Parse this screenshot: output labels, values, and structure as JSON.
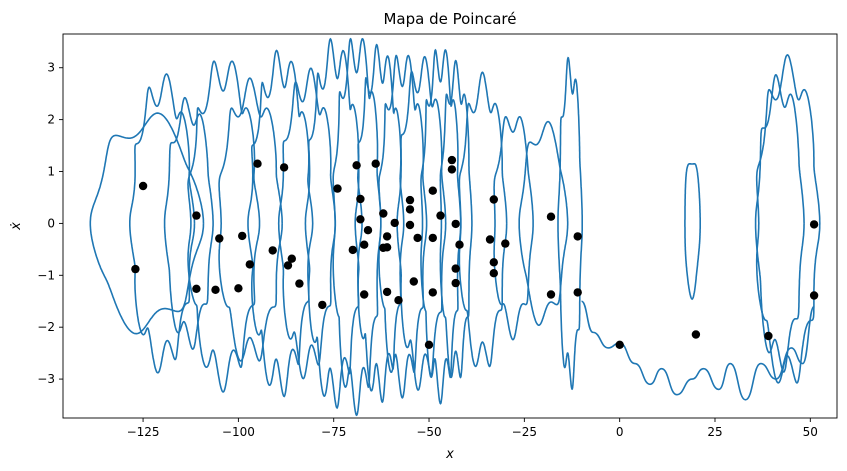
{
  "chart_data": {
    "type": "line",
    "title": "Mapa de Poincaré",
    "xlabel": "x",
    "ylabel": "ẋ",
    "xlim": [
      -146,
      57
    ],
    "ylim": [
      -3.75,
      3.65
    ],
    "xticks": [
      -125,
      -100,
      -75,
      -50,
      -25,
      0,
      25,
      50
    ],
    "yticks": [
      -3,
      -2,
      -1,
      0,
      1,
      2,
      3
    ],
    "grid": false,
    "legend": "none",
    "colors": {
      "trajectory": "#1f77b4",
      "points": "#000000"
    },
    "series": [
      {
        "kind": "trajectory",
        "loops": [
          {
            "cx": -124,
            "hw": 14,
            "amp": 1.95,
            "k": 6
          },
          {
            "cx": -120,
            "hw": 8,
            "amp": 2.6,
            "k": 10
          },
          {
            "cx": -113,
            "hw": 6,
            "amp": 2.2,
            "k": 8
          },
          {
            "cx": -104,
            "hw": 9,
            "amp": 2.9,
            "k": 11
          },
          {
            "cx": -97,
            "hw": 8,
            "amp": 2.5,
            "k": 9
          },
          {
            "cx": -89,
            "hw": 8,
            "amp": 3.0,
            "k": 12
          },
          {
            "cx": -82,
            "hw": 7,
            "amp": 2.7,
            "k": 10
          },
          {
            "cx": -75,
            "hw": 7,
            "amp": 3.2,
            "k": 12
          },
          {
            "cx": -69,
            "hw": 6,
            "amp": 3.3,
            "k": 11
          },
          {
            "cx": -63,
            "hw": 6,
            "amp": 3.1,
            "k": 12
          },
          {
            "cx": -57,
            "hw": 6,
            "amp": 3.0,
            "k": 11
          },
          {
            "cx": -52,
            "hw": 6,
            "amp": 2.9,
            "k": 10
          },
          {
            "cx": -47,
            "hw": 5,
            "amp": 3.1,
            "k": 11
          },
          {
            "cx": -43,
            "hw": 4,
            "amp": 2.8,
            "k": 9
          },
          {
            "cx": -36,
            "hw": 6,
            "amp": 2.6,
            "k": 9
          },
          {
            "cx": -28,
            "hw": 5,
            "amp": 2.0,
            "k": 7
          },
          {
            "cx": -20,
            "hw": 6,
            "amp": 1.8,
            "k": 6
          },
          {
            "cx": -13,
            "hw": 3,
            "amp": 2.9,
            "k": 8
          },
          {
            "cx": 19,
            "hw": 2,
            "amp": 1.3,
            "k": 3
          },
          {
            "cx": 42,
            "hw": 6,
            "amp": 2.6,
            "k": 8
          },
          {
            "cx": 44,
            "hw": 8,
            "amp": 2.9,
            "k": 9
          }
        ],
        "bottom_wave": [
          [
            -10,
            -1.5
          ],
          [
            -7,
            -2.1
          ],
          [
            -3,
            -2.4
          ],
          [
            0,
            -2.3
          ],
          [
            4,
            -2.7
          ],
          [
            8,
            -3.1
          ],
          [
            11,
            -2.8
          ],
          [
            15,
            -3.3
          ],
          [
            19,
            -3.0
          ],
          [
            22,
            -2.8
          ],
          [
            26,
            -3.2
          ],
          [
            29,
            -2.7
          ],
          [
            33,
            -3.4
          ],
          [
            37,
            -2.7
          ],
          [
            41,
            -3.0
          ],
          [
            45,
            -2.4
          ],
          [
            48,
            -2.7
          ],
          [
            51,
            -1.6
          ]
        ]
      },
      {
        "kind": "poincare-points",
        "points": [
          [
            -125,
            0.72
          ],
          [
            -127,
            -0.88
          ],
          [
            -111,
            0.15
          ],
          [
            -111,
            -1.26
          ],
          [
            -105,
            -0.29
          ],
          [
            -106,
            -1.28
          ],
          [
            -99,
            -0.24
          ],
          [
            -100,
            -1.25
          ],
          [
            -95,
            1.15
          ],
          [
            -97,
            -0.79
          ],
          [
            -91,
            -0.52
          ],
          [
            -88,
            1.08
          ],
          [
            -87,
            -0.81
          ],
          [
            -86,
            -0.68
          ],
          [
            -84,
            -1.16
          ],
          [
            -78,
            -1.57
          ],
          [
            -74,
            0.67
          ],
          [
            -70,
            -0.51
          ],
          [
            -69,
            1.12
          ],
          [
            -68,
            0.47
          ],
          [
            -68,
            0.08
          ],
          [
            -67,
            -0.41
          ],
          [
            -66,
            -0.13
          ],
          [
            -67,
            -1.37
          ],
          [
            -64,
            1.15
          ],
          [
            -62,
            0.19
          ],
          [
            -62,
            -0.47
          ],
          [
            -61,
            -0.46
          ],
          [
            -61,
            -0.25
          ],
          [
            -61,
            -1.32
          ],
          [
            -59,
            0.01
          ],
          [
            -58,
            -1.48
          ],
          [
            -55,
            0.45
          ],
          [
            -55,
            0.27
          ],
          [
            -55,
            -0.03
          ],
          [
            -54,
            -1.12
          ],
          [
            -53,
            -0.28
          ],
          [
            -50,
            -2.34
          ],
          [
            -49,
            0.63
          ],
          [
            -49,
            -0.28
          ],
          [
            -49,
            -1.33
          ],
          [
            -47,
            0.15
          ],
          [
            -44,
            1.22
          ],
          [
            -44,
            1.04
          ],
          [
            -43,
            -0.01
          ],
          [
            -43,
            -0.87
          ],
          [
            -43,
            -1.15
          ],
          [
            -42,
            -0.41
          ],
          [
            -34,
            -0.31
          ],
          [
            -33,
            0.46
          ],
          [
            -33,
            -0.75
          ],
          [
            -33,
            -0.96
          ],
          [
            -30,
            -0.39
          ],
          [
            -18,
            0.13
          ],
          [
            -18,
            -1.37
          ],
          [
            -11,
            -0.25
          ],
          [
            -11,
            -1.33
          ],
          [
            0,
            -2.34
          ],
          [
            20,
            -2.14
          ],
          [
            39,
            -2.17
          ],
          [
            51,
            -0.02
          ],
          [
            51,
            -1.39
          ]
        ]
      }
    ]
  }
}
